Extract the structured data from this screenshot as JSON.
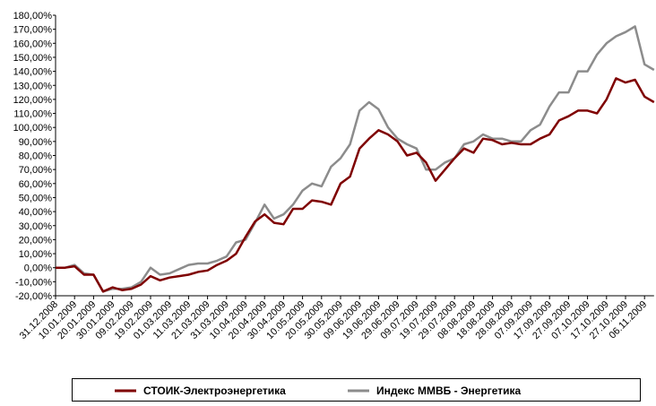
{
  "chart_data": {
    "type": "line",
    "categories": [
      "31.12.2008",
      null,
      "10.01.2009",
      null,
      "20.01.2009",
      null,
      "30.01.2009",
      null,
      "09.02.2009",
      null,
      "19.02.2009",
      null,
      "01.03.2009",
      null,
      "11.03.2009",
      null,
      "21.03.2009",
      null,
      "31.03.2009",
      null,
      "10.04.2009",
      null,
      "20.04.2009",
      null,
      "30.04.2009",
      null,
      "10.05.2009",
      null,
      "20.05.2009",
      null,
      "30.05.2009",
      null,
      "09.06.2009",
      null,
      "19.06.2009",
      null,
      "29.06.2009",
      null,
      "09.07.2009",
      null,
      "19.07.2009",
      null,
      "29.07.2009",
      null,
      "08.08.2009",
      null,
      "18.08.2009",
      null,
      "28.08.2009",
      null,
      "07.09.2009",
      null,
      "17.09.2009",
      null,
      "27.09.2009",
      null,
      "07.10.2009",
      null,
      "17.10.2009",
      null,
      "27.10.2009",
      null,
      "06.11.2009",
      null
    ],
    "series": [
      {
        "name": "СТОИК-Электроэнергетика",
        "color": "#7f0000",
        "values": [
          0,
          0,
          1,
          -5,
          -5,
          -17,
          -14,
          -16,
          -15,
          -12,
          -6,
          -9,
          -7,
          -6,
          -5,
          -3,
          -2,
          2,
          5,
          10,
          22,
          33,
          38,
          32,
          31,
          42,
          42,
          48,
          47,
          45,
          60,
          65,
          85,
          92,
          98,
          95,
          90,
          80,
          82,
          75,
          62,
          70,
          78,
          85,
          82,
          92,
          91,
          88,
          89,
          88,
          88,
          92,
          95,
          105,
          108,
          112,
          112,
          110,
          120,
          135,
          132,
          134,
          122,
          118
        ]
      },
      {
        "name": "Индекс ММВБ - Энергетика",
        "color": "#8c8c8c",
        "values": [
          0,
          0,
          2,
          -4,
          -5,
          -17,
          -15,
          -15,
          -14,
          -10,
          0,
          -5,
          -4,
          -1,
          2,
          3,
          3,
          5,
          8,
          18,
          20,
          32,
          45,
          35,
          38,
          45,
          55,
          60,
          58,
          72,
          78,
          88,
          112,
          118,
          113,
          100,
          92,
          88,
          85,
          70,
          70,
          75,
          78,
          88,
          90,
          95,
          92,
          92,
          90,
          90,
          98,
          102,
          115,
          125,
          125,
          140,
          140,
          152,
          160,
          165,
          168,
          172,
          145,
          141
        ]
      }
    ],
    "ylim": [
      -20,
      180
    ],
    "yticks": [
      {
        "value": -20,
        "label": "-20,00%"
      },
      {
        "value": -10,
        "label": "-10,00%"
      },
      {
        "value": 0,
        "label": "0,00%"
      },
      {
        "value": 10,
        "label": "10,00%"
      },
      {
        "value": 20,
        "label": "20,00%"
      },
      {
        "value": 30,
        "label": "30,00%"
      },
      {
        "value": 40,
        "label": "40,00%"
      },
      {
        "value": 50,
        "label": "50,00%"
      },
      {
        "value": 60,
        "label": "60,00%"
      },
      {
        "value": 70,
        "label": "70,00%"
      },
      {
        "value": 80,
        "label": "80,00%"
      },
      {
        "value": 90,
        "label": "90,00%"
      },
      {
        "value": 100,
        "label": "100,00%"
      },
      {
        "value": 110,
        "label": "110,00%"
      },
      {
        "value": 120,
        "label": "120,00%"
      },
      {
        "value": 130,
        "label": "130,00%"
      },
      {
        "value": 140,
        "label": "140,00%"
      },
      {
        "value": 150,
        "label": "150,00%"
      },
      {
        "value": 160,
        "label": "160,00%"
      },
      {
        "value": 170,
        "label": "170,00%"
      },
      {
        "value": 180,
        "label": "180,00%"
      }
    ],
    "grid": false,
    "legend": "bottom"
  }
}
